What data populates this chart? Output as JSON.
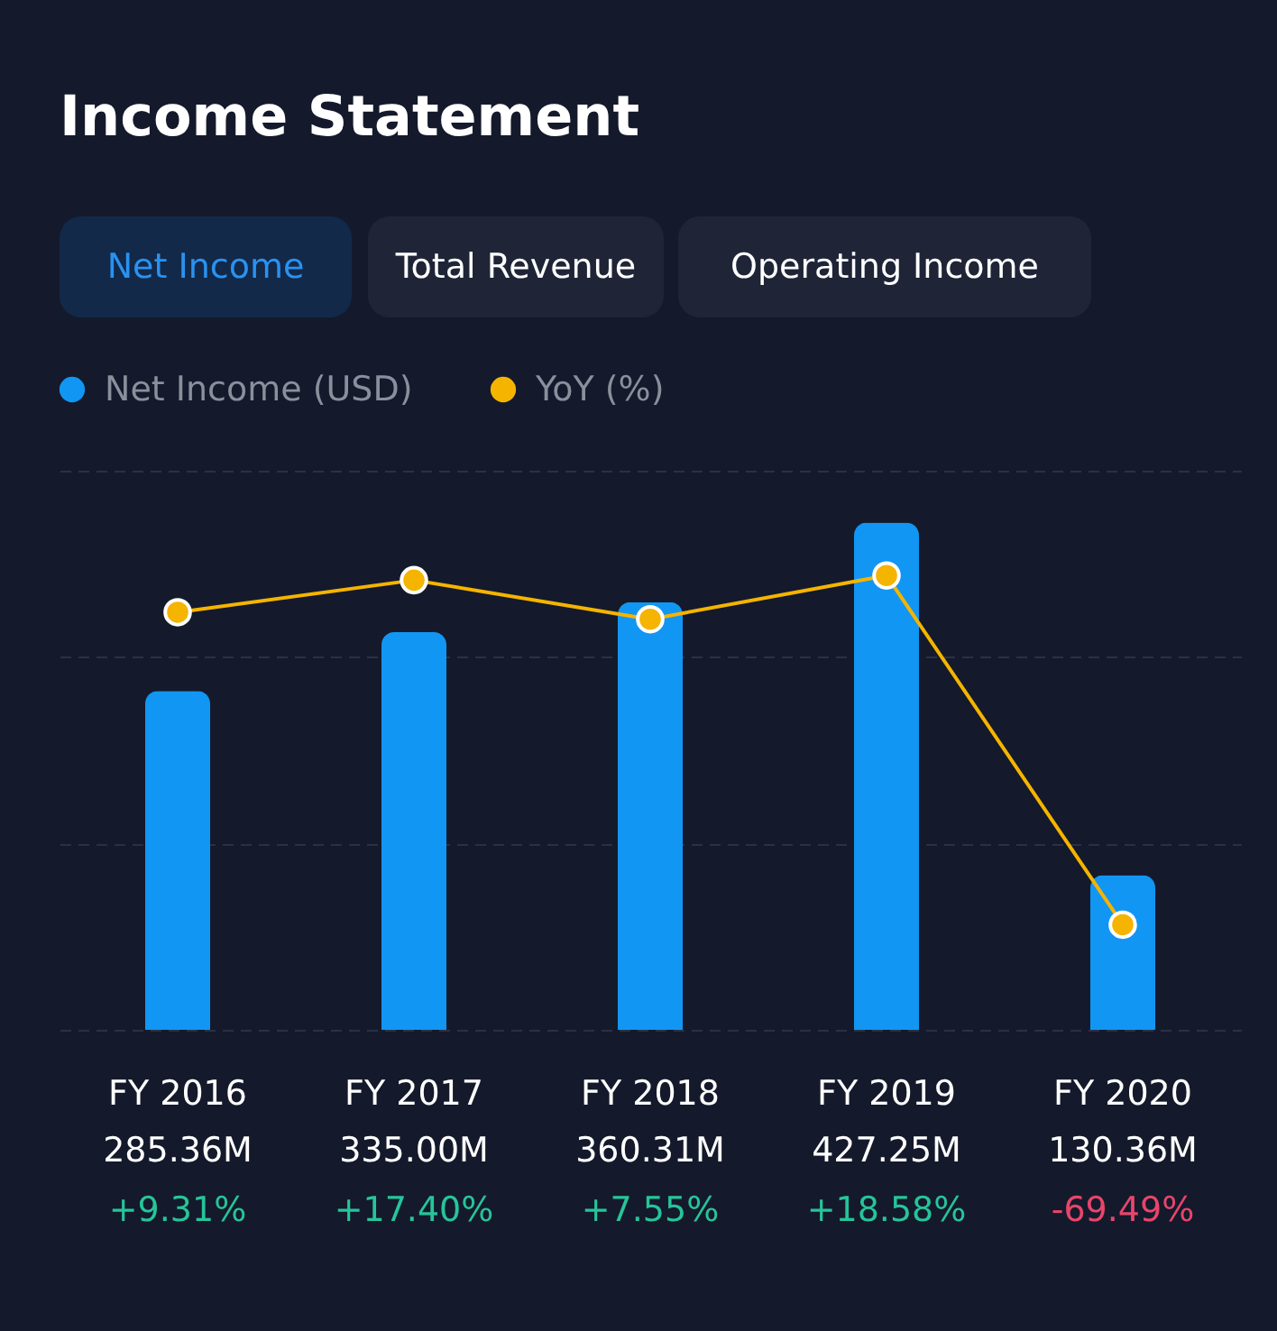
{
  "chart_data": {
    "type": "bar",
    "title": "Income Statement",
    "annotations": [
      "Net Income",
      "Total Revenue",
      "Operating Income"
    ],
    "categories": [
      "FY 2016",
      "FY 2017",
      "FY 2018",
      "FY 2019",
      "FY 2020"
    ],
    "series": [
      {
        "name": "Net Income (USD)",
        "color": "#1296f3",
        "values": [
          285.36,
          335.0,
          360.31,
          427.25,
          130.36
        ],
        "value_labels": [
          "285.36M",
          "335.00M",
          "360.31M",
          "427.25M",
          "130.36M"
        ]
      },
      {
        "name": "YoY (%)",
        "type": "line",
        "axis": "y2",
        "color": "#f5b400",
        "marker": "circle",
        "values": [
          9.31,
          17.4,
          7.55,
          18.58,
          -69.49
        ],
        "value_labels": [
          "+9.31%",
          "+17.40%",
          "+7.55%",
          "+18.58%",
          "-69.49%"
        ]
      }
    ],
    "ylim": [
      0,
      471
    ],
    "yticks": [
      {
        "value": 0,
        "label": null
      },
      {
        "value": 157,
        "label": null
      },
      {
        "value": 314,
        "label": null
      },
      {
        "value": 471,
        "label": null
      }
    ],
    "y2lim": [
      -96,
      45
    ],
    "grid": "y",
    "tick_labels": "x",
    "legend": "top left"
  }
}
